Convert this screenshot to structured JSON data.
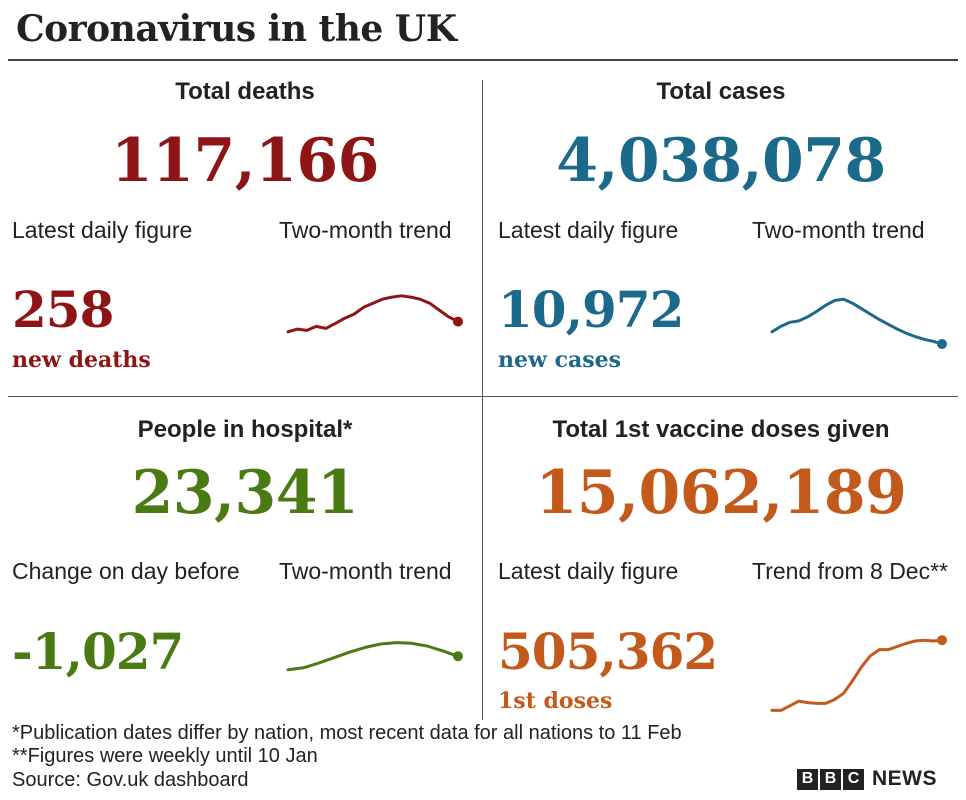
{
  "title": "Coronavirus in the UK",
  "colors": {
    "deaths": "#8e1515",
    "cases": "#1b6a8b",
    "hospital": "#4a7a12",
    "vaccine": "#c35a1b"
  },
  "panels": {
    "deaths": {
      "title": "Total deaths",
      "total": "117,166",
      "left_label": "Latest daily figure",
      "right_label": "Two-month trend",
      "daily": "258",
      "unit": "new deaths"
    },
    "cases": {
      "title": "Total cases",
      "total": "4,038,078",
      "left_label": "Latest daily figure",
      "right_label": "Two-month trend",
      "daily": "10,972",
      "unit": "new cases"
    },
    "hospital": {
      "title": "People in hospital*",
      "total": "23,341",
      "left_label": "Change on day before",
      "right_label": "Two-month trend",
      "daily": "-1,027",
      "unit": ""
    },
    "vaccine": {
      "title": "Total 1st vaccine doses given",
      "total": "15,062,189",
      "left_label": "Latest daily figure",
      "right_label": "Trend from 8 Dec**",
      "daily": "505,362",
      "unit": "1st doses"
    }
  },
  "footnotes": {
    "line1": "*Publication dates differ by nation, most recent data for all nations to 11 Feb",
    "line2": "**Figures were weekly until 10 Jan",
    "source": "Source: Gov.uk dashboard"
  },
  "logo": {
    "letters": [
      "B",
      "B",
      "C"
    ],
    "text": "NEWS"
  },
  "chart_data": [
    {
      "type": "line",
      "name": "deaths-trend",
      "values": [
        40,
        44,
        42,
        48,
        45,
        52,
        60,
        66,
        76,
        82,
        88,
        91,
        93,
        91,
        88,
        82,
        72,
        62,
        55
      ]
    },
    {
      "type": "line",
      "name": "cases-trend",
      "values": [
        40,
        48,
        54,
        56,
        62,
        70,
        79,
        86,
        88,
        82,
        74,
        66,
        58,
        51,
        44,
        38,
        33,
        29,
        26,
        22
      ]
    },
    {
      "type": "line",
      "name": "hospital-trend",
      "values": [
        40,
        43,
        50,
        58,
        66,
        73,
        78,
        80,
        79,
        75,
        68,
        60
      ]
    },
    {
      "type": "line",
      "name": "vaccine-trend",
      "values": [
        2,
        2,
        8,
        14,
        12,
        11,
        11,
        16,
        24,
        40,
        58,
        72,
        80,
        80,
        84,
        88,
        91,
        92,
        91,
        92
      ]
    }
  ]
}
